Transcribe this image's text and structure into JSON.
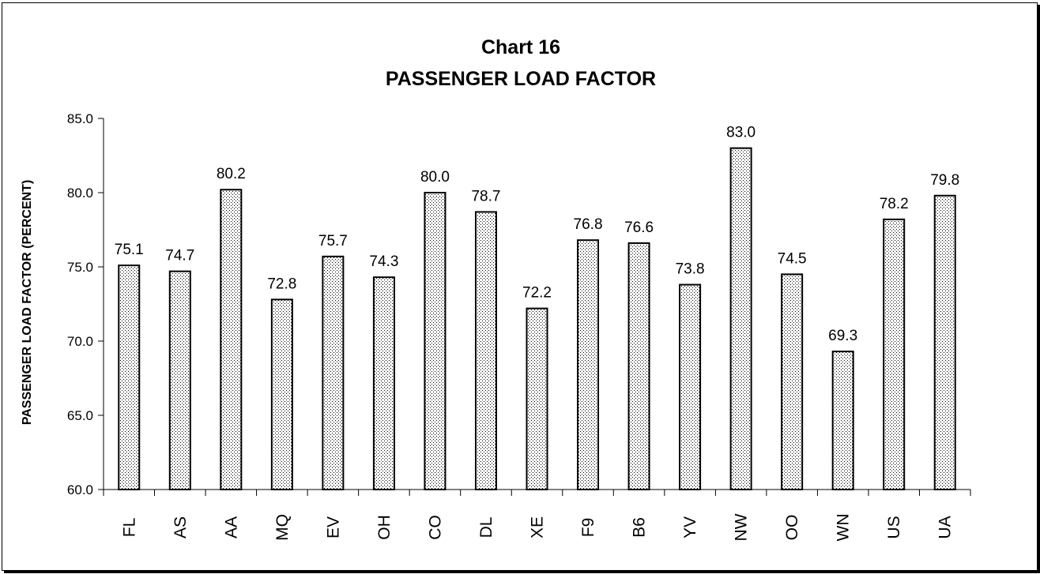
{
  "chart_data": {
    "type": "bar",
    "title": "Chart 16",
    "subtitle": "PASSENGER LOAD FACTOR",
    "xlabel": "",
    "ylabel": "PASSENGER LOAD FACTOR (PERCENT)",
    "ylim": [
      60.0,
      85.0
    ],
    "yticks": [
      "60.0",
      "65.0",
      "70.0",
      "75.0",
      "80.0",
      "85.0"
    ],
    "grid": false,
    "legend": "none",
    "bar_fill": "dotted",
    "categories": [
      "FL",
      "AS",
      "AA",
      "MQ",
      "EV",
      "OH",
      "CO",
      "DL",
      "XE",
      "F9",
      "B6",
      "YV",
      "NW",
      "OO",
      "WN",
      "US",
      "UA"
    ],
    "values": [
      75.1,
      74.7,
      80.2,
      72.8,
      75.7,
      74.3,
      80.0,
      78.7,
      72.2,
      76.8,
      76.6,
      73.8,
      83.0,
      74.5,
      69.3,
      78.2,
      79.8
    ],
    "value_labels": [
      "75.1",
      "74.7",
      "80.2",
      "72.8",
      "75.7",
      "74.3",
      "80.0",
      "78.7",
      "72.2",
      "76.8",
      "76.6",
      "73.8",
      "83.0",
      "74.5",
      "69.3",
      "78.2",
      "79.8"
    ]
  }
}
